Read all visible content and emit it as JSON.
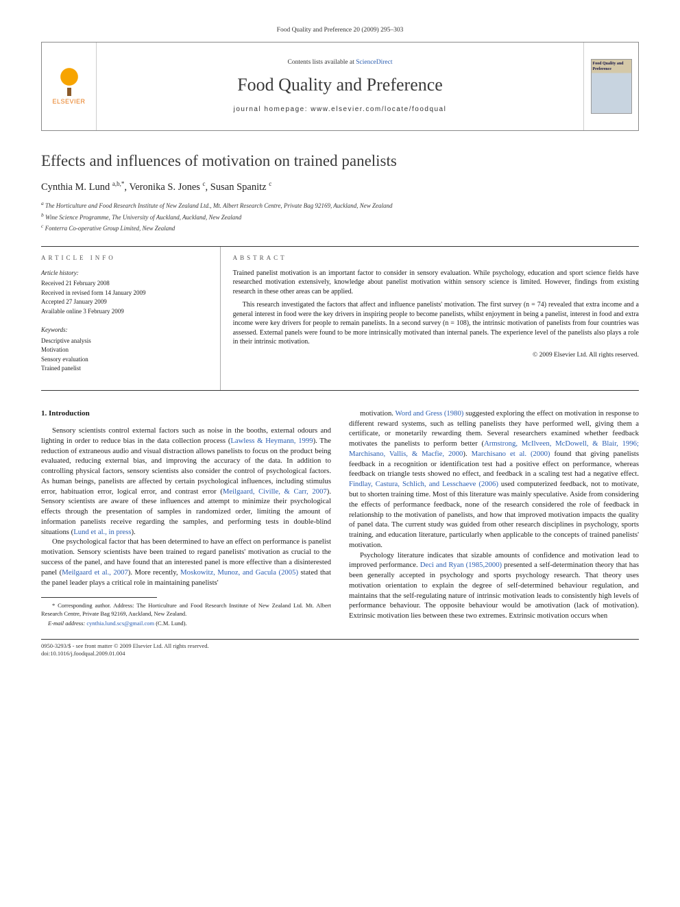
{
  "header_citation": "Food Quality and Preference 20 (2009) 295–303",
  "topbox": {
    "publisher": "ELSEVIER",
    "contents_prefix": "Contents lists available at ",
    "contents_link": "ScienceDirect",
    "journal": "Food Quality and Preference",
    "homepage_label": "journal homepage: ",
    "homepage_url": "www.elsevier.com/locate/foodqual",
    "cover_text": "Food Quality and Preference"
  },
  "title": "Effects and influences of motivation on trained panelists",
  "authors_html": "Cynthia M. Lund <sup>a,b,*</sup>, Veronika S. Jones <sup>c</sup>, Susan Spanitz <sup>c</sup>",
  "affiliations": [
    "a The Horticulture and Food Research Institute of New Zealand Ltd., Mt. Albert Research Centre, Private Bag 92169, Auckland, New Zealand",
    "b Wine Science Programme, The University of Auckland, Auckland, New Zealand",
    "c Fonterra Co-operative Group Limited, New Zealand"
  ],
  "article_info": {
    "label": "ARTICLE INFO",
    "history_title": "Article history:",
    "history": [
      "Received 21 February 2008",
      "Received in revised form 14 January 2009",
      "Accepted 27 January 2009",
      "Available online 3 February 2009"
    ],
    "keywords_title": "Keywords:",
    "keywords": [
      "Descriptive analysis",
      "Motivation",
      "Sensory evaluation",
      "Trained panelist"
    ]
  },
  "abstract": {
    "label": "ABSTRACT",
    "paragraphs": [
      "Trained panelist motivation is an important factor to consider in sensory evaluation. While psychology, education and sport science fields have researched motivation extensively, knowledge about panelist motivation within sensory science is limited. However, findings from existing research in these other areas can be applied.",
      "This research investigated the factors that affect and influence panelists' motivation. The first survey (n = 74) revealed that extra income and a general interest in food were the key drivers in inspiring people to become panelists, whilst enjoyment in being a panelist, interest in food and extra income were key drivers for people to remain panelists. In a second survey (n = 108), the intrinsic motivation of panelists from four countries was assessed. External panels were found to be more intrinsically motivated than internal panels. The experience level of the panelists also plays a role in their intrinsic motivation."
    ],
    "copyright": "© 2009 Elsevier Ltd. All rights reserved."
  },
  "body": {
    "section_number": "1.",
    "section_title": "Introduction",
    "left": [
      "Sensory scientists control external factors such as noise in the booths, external odours and lighting in order to reduce bias in the data collection process (<a class=\"ref\">Lawless & Heymann, 1999</a>). The reduction of extraneous audio and visual distraction allows panelists to focus on the product being evaluated, reducing external bias, and improving the accuracy of the data. In addition to controlling physical factors, sensory scientists also consider the control of psychological factors. As human beings, panelists are affected by certain psychological influences, including stimulus error, habituation error, logical error, and contrast error (<a class=\"ref\">Meilgaard, Civille, & Carr, 2007</a>). Sensory scientists are aware of these influences and attempt to minimize their psychological effects through the presentation of samples in randomized order, limiting the amount of information panelists receive regarding the samples, and performing tests in double-blind situations (<a class=\"ref\">Lund et al., in press</a>).",
      "One psychological factor that has been determined to have an effect on performance is panelist motivation. Sensory scientists have been trained to regard panelists' motivation as crucial to the success of the panel, and have found that an interested panel is more effective than a disinterested panel (<a class=\"ref\">Meilgaard et al., 2007</a>). More recently, <a class=\"ref\">Moskowitz, Munoz, and Gacula (2005)</a> stated that the panel leader plays a critical role in maintaining panelists'"
    ],
    "right": [
      "motivation. <a class=\"ref\">Word and Gress (1980)</a> suggested exploring the effect on motivation in response to different reward systems, such as telling panelists they have performed well, giving them a certificate, or monetarily rewarding them. Several researchers examined whether feedback motivates the panelists to perform better (<a class=\"ref\">Armstrong, McIlveen, McDowell, & Blair, 1996; Marchisano, Vallis, & Macfie, 2000</a>). <a class=\"ref\">Marchisano et al. (2000)</a> found that giving panelists feedback in a recognition or identification test had a positive effect on performance, whereas feedback on triangle tests showed no effect, and feedback in a scaling test had a negative effect. <a class=\"ref\">Findlay, Castura, Schlich, and Lesschaeve (2006)</a> used computerized feedback, not to motivate, but to shorten training time. Most of this literature was mainly speculative. Aside from considering the effects of performance feedback, none of the research considered the role of feedback in relationship to the motivation of panelists, and how that improved motivation impacts the quality of panel data. The current study was guided from other research disciplines in psychology, sports training, and education literature, particularly when applicable to the concepts of trained panelists' motivation.",
      "Psychology literature indicates that sizable amounts of confidence and motivation lead to improved performance. <a class=\"ref\">Deci and Ryan (1985,2000)</a> presented a self-determination theory that has been generally accepted in psychology and sports psychology research. That theory uses motivation orientation to explain the degree of self-determined behaviour regulation, and maintains that the self-regulating nature of intrinsic motivation leads to consistently high levels of performance behaviour. The opposite behaviour would be amotivation (lack of motivation). Extrinsic motivation lies between these two extremes. Extrinsic motivation occurs when"
    ]
  },
  "footnotes": {
    "corr": "* Corresponding author. Address: The Horticulture and Food Research Institute of New Zealand Ltd. Mt. Albert Research Centre, Private Bag 92169, Auckland, New Zealand.",
    "email_label": "E-mail address: ",
    "email": "cynthia.lund.scs@gmail.com",
    "email_suffix": " (C.M. Lund)."
  },
  "bottom": {
    "line1": "0950-3293/$ - see front matter © 2009 Elsevier Ltd. All rights reserved.",
    "line2": "doi:10.1016/j.foodqual.2009.01.004"
  },
  "colors": {
    "link": "#2a5db0",
    "rule": "#333333",
    "elsevier_orange": "#e77817"
  }
}
